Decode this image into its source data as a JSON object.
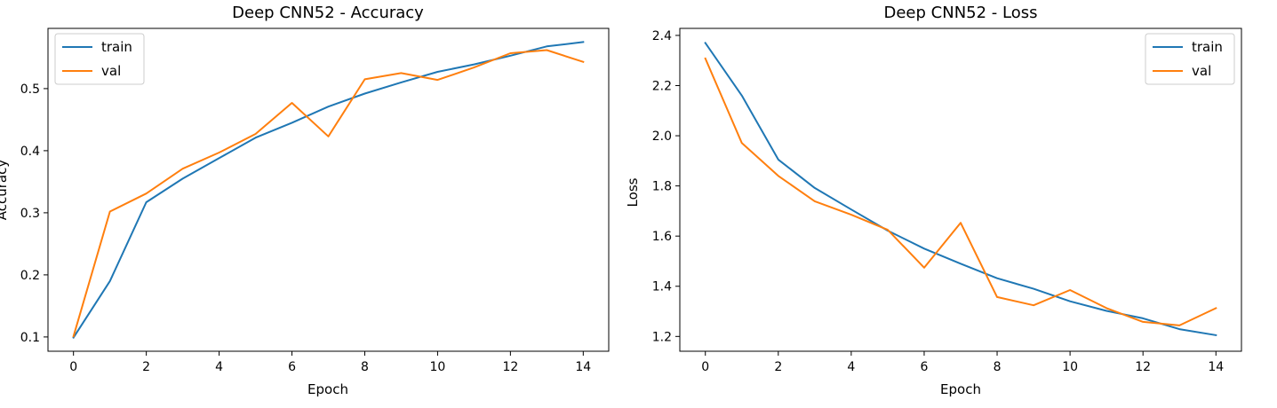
{
  "chart_data": [
    {
      "type": "line",
      "title": "Deep CNN52 - Accuracy",
      "xlabel": "Epoch",
      "ylabel": "Accuracy",
      "x": [
        0,
        1,
        2,
        3,
        4,
        5,
        6,
        7,
        8,
        9,
        10,
        11,
        12,
        13,
        14
      ],
      "xlim": [
        -0.7,
        14.7
      ],
      "ylim": [
        0.077,
        0.597
      ],
      "xticks": [
        0,
        2,
        4,
        6,
        8,
        10,
        12,
        14
      ],
      "yticks": [
        0.1,
        0.2,
        0.3,
        0.4,
        0.5
      ],
      "ytick_labels": [
        "0.1",
        "0.2",
        "0.3",
        "0.4",
        "0.5"
      ],
      "legend_position": "upper-left",
      "grid": false,
      "series": [
        {
          "name": "train",
          "color": "#1f77b4",
          "values": [
            0.099,
            0.19,
            0.317,
            0.355,
            0.388,
            0.421,
            0.445,
            0.471,
            0.492,
            0.51,
            0.527,
            0.539,
            0.553,
            0.568,
            0.575
          ]
        },
        {
          "name": "val",
          "color": "#ff7f0e",
          "values": [
            0.101,
            0.302,
            0.331,
            0.371,
            0.397,
            0.427,
            0.477,
            0.423,
            0.515,
            0.525,
            0.514,
            0.534,
            0.557,
            0.562,
            0.543
          ]
        }
      ]
    },
    {
      "type": "line",
      "title": "Deep CNN52 - Loss",
      "xlabel": "Epoch",
      "ylabel": "Loss",
      "x": [
        0,
        1,
        2,
        3,
        4,
        5,
        6,
        7,
        8,
        9,
        10,
        11,
        12,
        13,
        14
      ],
      "xlim": [
        -0.7,
        14.7
      ],
      "ylim": [
        1.141,
        2.428
      ],
      "xticks": [
        0,
        2,
        4,
        6,
        8,
        10,
        12,
        14
      ],
      "yticks": [
        1.2,
        1.4,
        1.6,
        1.8,
        2.0,
        2.2,
        2.4
      ],
      "ytick_labels": [
        "1.2",
        "1.4",
        "1.6",
        "1.8",
        "2.0",
        "2.2",
        "2.4"
      ],
      "legend_position": "upper-right",
      "grid": false,
      "series": [
        {
          "name": "train",
          "color": "#1f77b4",
          "values": [
            2.37,
            2.16,
            1.905,
            1.792,
            1.706,
            1.622,
            1.55,
            1.49,
            1.432,
            1.39,
            1.34,
            1.302,
            1.272,
            1.229,
            1.205
          ]
        },
        {
          "name": "val",
          "color": "#ff7f0e",
          "values": [
            2.308,
            1.971,
            1.84,
            1.739,
            1.685,
            1.625,
            1.474,
            1.653,
            1.357,
            1.324,
            1.385,
            1.313,
            1.258,
            1.244,
            1.313
          ]
        }
      ]
    }
  ]
}
